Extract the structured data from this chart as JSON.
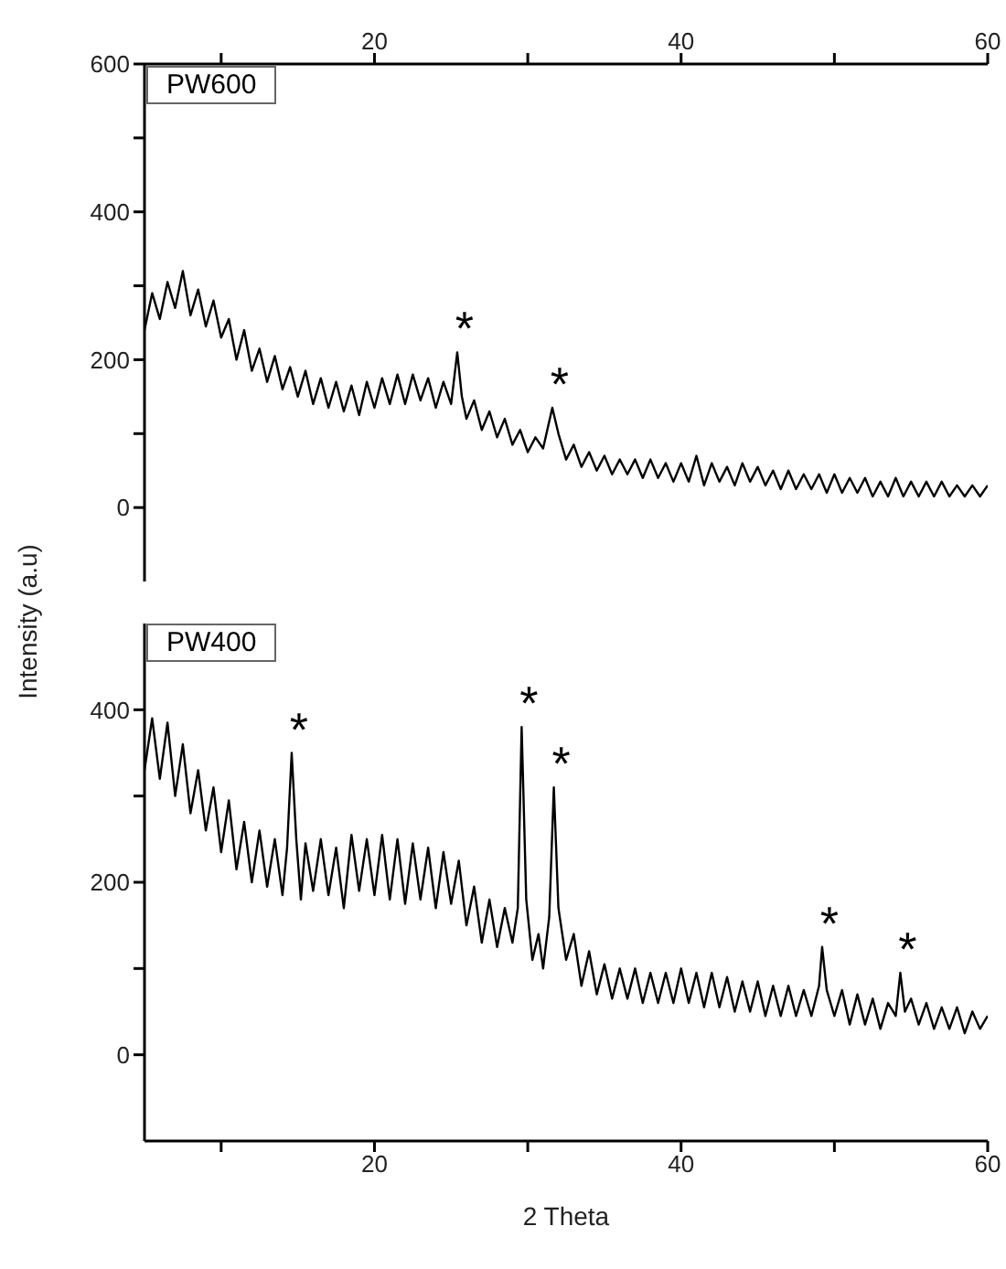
{
  "chart_data": [
    {
      "type": "line",
      "ylabel": "Intensity (a.u)",
      "xlim": [
        5,
        60
      ],
      "xticks": [
        {
          "value": 10,
          "label": null
        },
        20,
        {
          "value": 30,
          "label": null
        },
        40,
        {
          "value": 50,
          "label": null
        },
        60
      ],
      "ylim": [
        -100,
        600
      ],
      "yticks": [
        0,
        {
          "value": 100,
          "label": null
        },
        200,
        {
          "value": 300,
          "label": null
        },
        400,
        {
          "value": 500,
          "label": null
        },
        600
      ],
      "legend": "top left",
      "marker": "none",
      "line_style": "solid",
      "annotations": [
        {
          "text": "*",
          "x": 25.4,
          "y": 210
        },
        {
          "text": "*",
          "x": 31.6,
          "y": 135
        }
      ],
      "series": [
        {
          "name": "PW600",
          "color": "#000000",
          "x": [
            5,
            5.5,
            6,
            6.5,
            7,
            7.5,
            8,
            8.5,
            9,
            9.5,
            10,
            10.5,
            11,
            11.5,
            12,
            12.5,
            13,
            13.5,
            14,
            14.5,
            15,
            15.5,
            16,
            16.5,
            17,
            17.5,
            18,
            18.5,
            19,
            19.5,
            20,
            20.5,
            21,
            21.5,
            22,
            22.5,
            23,
            23.5,
            24,
            24.5,
            25,
            25.4,
            25.7,
            26,
            26.5,
            27,
            27.5,
            28,
            28.5,
            29,
            29.5,
            30,
            30.5,
            31,
            31.6,
            32,
            32.5,
            33,
            33.5,
            34,
            34.5,
            35,
            35.5,
            36,
            36.5,
            37,
            37.5,
            38,
            38.5,
            39,
            39.5,
            40,
            40.5,
            41,
            41.5,
            42,
            42.5,
            43,
            43.5,
            44,
            44.5,
            45,
            45.5,
            46,
            46.5,
            47,
            47.5,
            48,
            48.5,
            49,
            49.5,
            50,
            50.5,
            51,
            51.5,
            52,
            52.5,
            53,
            53.5,
            54,
            54.5,
            55,
            55.5,
            56,
            56.5,
            57,
            57.5,
            58,
            58.5,
            59,
            59.5,
            60
          ],
          "values": [
            240,
            290,
            255,
            305,
            270,
            320,
            260,
            295,
            245,
            280,
            230,
            255,
            200,
            240,
            185,
            215,
            170,
            205,
            160,
            190,
            150,
            185,
            140,
            175,
            135,
            170,
            130,
            165,
            125,
            170,
            135,
            175,
            140,
            180,
            140,
            180,
            145,
            175,
            135,
            170,
            140,
            210,
            150,
            120,
            145,
            105,
            130,
            95,
            120,
            85,
            105,
            75,
            95,
            80,
            135,
            100,
            65,
            85,
            55,
            75,
            50,
            70,
            45,
            65,
            45,
            65,
            40,
            65,
            40,
            60,
            35,
            60,
            35,
            70,
            30,
            60,
            35,
            55,
            30,
            60,
            35,
            55,
            30,
            50,
            25,
            50,
            25,
            45,
            25,
            45,
            20,
            45,
            20,
            40,
            20,
            40,
            15,
            35,
            15,
            40,
            15,
            35,
            15,
            35,
            15,
            35,
            15,
            30,
            15,
            30,
            15,
            30
          ]
        }
      ]
    },
    {
      "type": "line",
      "xlabel": "2 Theta",
      "xlim": [
        5,
        60
      ],
      "xticks": [
        {
          "value": 10,
          "label": null
        },
        20,
        {
          "value": 30,
          "label": null
        },
        40,
        {
          "value": 50,
          "label": null
        },
        60
      ],
      "ylim": [
        -100,
        500
      ],
      "yticks": [
        0,
        {
          "value": 100,
          "label": null
        },
        200,
        {
          "value": 300,
          "label": null
        },
        400
      ],
      "legend": "top left",
      "marker": "none",
      "line_style": "solid",
      "annotations": [
        {
          "text": "*",
          "x": 14.6,
          "y": 350
        },
        {
          "text": "*",
          "x": 29.6,
          "y": 380
        },
        {
          "text": "*",
          "x": 31.7,
          "y": 310
        },
        {
          "text": "*",
          "x": 49.2,
          "y": 125
        },
        {
          "text": "*",
          "x": 54.3,
          "y": 95
        }
      ],
      "series": [
        {
          "name": "PW400",
          "color": "#000000",
          "x": [
            5,
            5.5,
            6,
            6.5,
            7,
            7.5,
            8,
            8.5,
            9,
            9.5,
            10,
            10.5,
            11,
            11.5,
            12,
            12.5,
            13,
            13.5,
            14,
            14.3,
            14.6,
            14.9,
            15.2,
            15.5,
            16,
            16.5,
            17,
            17.5,
            18,
            18.5,
            19,
            19.5,
            20,
            20.5,
            21,
            21.5,
            22,
            22.5,
            23,
            23.5,
            24,
            24.5,
            25,
            25.5,
            26,
            26.5,
            27,
            27.5,
            28,
            28.5,
            29,
            29.35,
            29.6,
            29.9,
            30.3,
            30.7,
            31,
            31.4,
            31.7,
            32,
            32.5,
            33,
            33.5,
            34,
            34.5,
            35,
            35.5,
            36,
            36.5,
            37,
            37.5,
            38,
            38.5,
            39,
            39.5,
            40,
            40.5,
            41,
            41.5,
            42,
            42.5,
            43,
            43.5,
            44,
            44.5,
            45,
            45.5,
            46,
            46.5,
            47,
            47.5,
            48,
            48.5,
            49,
            49.2,
            49.5,
            50,
            50.5,
            51,
            51.5,
            52,
            52.5,
            53,
            53.5,
            54,
            54.3,
            54.6,
            55,
            55.5,
            56,
            56.5,
            57,
            57.5,
            58,
            58.5,
            59,
            59.5,
            60
          ],
          "values": [
            330,
            390,
            320,
            385,
            300,
            360,
            280,
            330,
            260,
            310,
            235,
            295,
            215,
            270,
            200,
            260,
            195,
            250,
            185,
            240,
            350,
            250,
            180,
            245,
            190,
            250,
            185,
            240,
            170,
            255,
            190,
            250,
            185,
            255,
            180,
            250,
            175,
            245,
            180,
            240,
            170,
            235,
            175,
            225,
            150,
            195,
            130,
            180,
            125,
            170,
            130,
            170,
            380,
            180,
            110,
            140,
            100,
            160,
            310,
            170,
            110,
            140,
            80,
            120,
            70,
            105,
            65,
            100,
            65,
            100,
            60,
            95,
            60,
            95,
            60,
            100,
            60,
            95,
            55,
            95,
            55,
            90,
            50,
            85,
            50,
            85,
            45,
            80,
            45,
            80,
            45,
            75,
            45,
            80,
            125,
            75,
            45,
            75,
            35,
            70,
            35,
            65,
            30,
            60,
            45,
            95,
            50,
            65,
            35,
            60,
            30,
            55,
            30,
            55,
            25,
            50,
            30,
            45
          ]
        }
      ]
    }
  ]
}
